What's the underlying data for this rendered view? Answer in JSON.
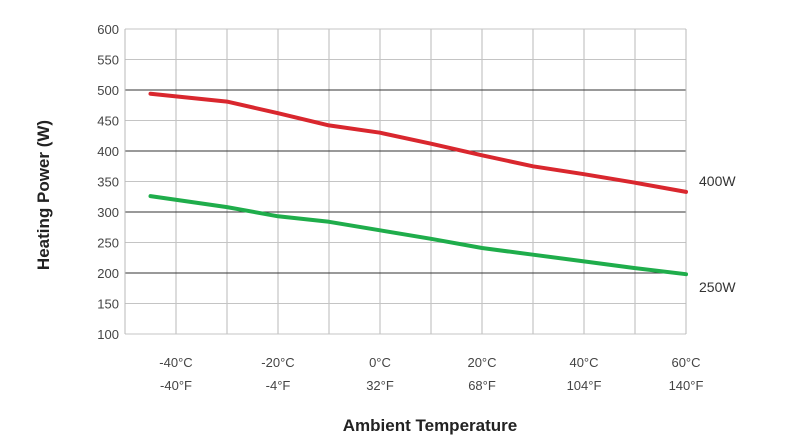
{
  "chart_data": {
    "type": "line",
    "xlabel": "Ambient Temperature",
    "ylabel": "Heating Power (W)",
    "xlim": [
      -50,
      60
    ],
    "ylim": [
      100,
      600
    ],
    "y_ticks": [
      100,
      150,
      200,
      250,
      300,
      350,
      400,
      450,
      500,
      550,
      600
    ],
    "x_ticks": [
      {
        "value": -40,
        "celsius": "-40°C",
        "fahrenheit": "-40°F"
      },
      {
        "value": -20,
        "celsius": "-20°C",
        "fahrenheit": "-4°F"
      },
      {
        "value": 0,
        "celsius": "0°C",
        "fahrenheit": "32°F"
      },
      {
        "value": 20,
        "celsius": "20°C",
        "fahrenheit": "68°F"
      },
      {
        "value": 40,
        "celsius": "40°C",
        "fahrenheit": "104°F"
      },
      {
        "value": 60,
        "celsius": "60°C",
        "fahrenheit": "140°F"
      }
    ],
    "grid": {
      "vertical_every": 10,
      "horizontal_major": [
        200,
        300,
        400,
        500
      ]
    },
    "series": [
      {
        "name": "400W",
        "color": "#d9272e",
        "x": [
          -45,
          -30,
          -20,
          -10,
          0,
          10,
          20,
          30,
          40,
          50,
          60
        ],
        "y": [
          494,
          481,
          462,
          442,
          430,
          412,
          393,
          375,
          362,
          348,
          333
        ]
      },
      {
        "name": "250W",
        "color": "#1fad4b",
        "x": [
          -45,
          -30,
          -20,
          -10,
          0,
          10,
          20,
          30,
          40,
          50,
          60
        ],
        "y": [
          326,
          308,
          293,
          284,
          270,
          256,
          241,
          230,
          219,
          208,
          198
        ]
      }
    ]
  }
}
